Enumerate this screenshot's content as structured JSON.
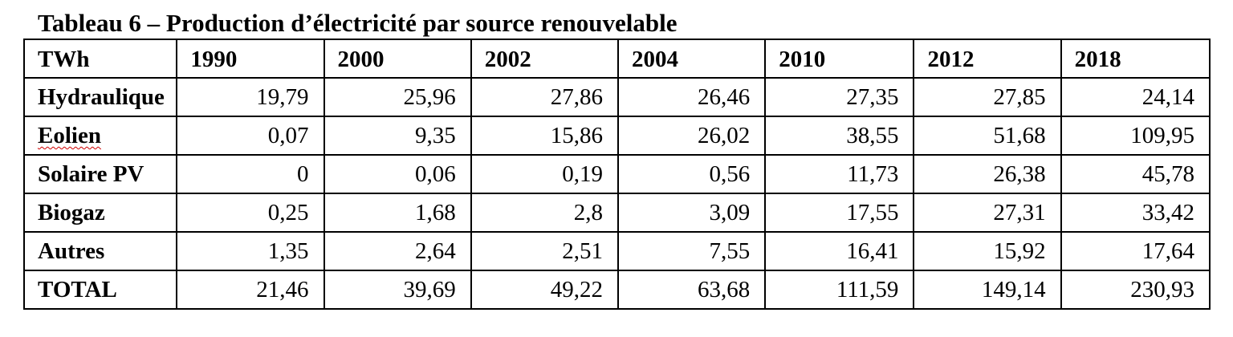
{
  "title": "Tableau 6 – Production d’électricité par source renouvelable",
  "table": {
    "headers": [
      "TWh",
      "1990",
      "2000",
      "2002",
      "2004",
      "2010",
      "2012",
      "2018"
    ],
    "rows": [
      {
        "label": "Hydraulique",
        "values": [
          "19,79",
          "25,96",
          "27,86",
          "26,46",
          "27,35",
          "27,85",
          "24,14"
        ]
      },
      {
        "label": "Eolien",
        "values": [
          "0,07",
          "9,35",
          "15,86",
          "26,02",
          "38,55",
          "51,68",
          "109,95"
        ]
      },
      {
        "label": "Solaire PV",
        "values": [
          "0",
          "0,06",
          "0,19",
          "0,56",
          "11,73",
          "26,38",
          "45,78"
        ]
      },
      {
        "label": "Biogaz",
        "values": [
          "0,25",
          "1,68",
          "2,8",
          "3,09",
          "17,55",
          "27,31",
          "33,42"
        ]
      },
      {
        "label": "Autres",
        "values": [
          "1,35",
          "2,64",
          "2,51",
          "7,55",
          "16,41",
          "15,92",
          "17,64"
        ]
      },
      {
        "label": "TOTAL",
        "values": [
          "21,46",
          "39,69",
          "49,22",
          "63,68",
          "111,59",
          "149,14",
          "230,93"
        ]
      }
    ]
  }
}
